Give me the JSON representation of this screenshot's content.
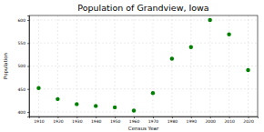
{
  "chart_data": {
    "type": "scatter",
    "title": "Population of Grandview, Iowa",
    "x_label": "Census Year",
    "y_label": "Population",
    "x": [
      1910,
      1920,
      1930,
      1940,
      1950,
      1960,
      1970,
      1980,
      1990,
      2000,
      2010,
      2020
    ],
    "values": [
      452,
      428,
      417,
      413,
      410,
      403,
      441,
      516,
      541,
      600,
      569,
      491
    ],
    "color": "#008000",
    "marker": "circle",
    "xlim": [
      1905,
      2025
    ],
    "xticks": [
      1910,
      1920,
      1930,
      1940,
      1950,
      1960,
      1970,
      1980,
      1990,
      2000,
      2010,
      2020
    ],
    "ylim": [
      390,
      610
    ],
    "yticks": [
      400,
      450,
      500,
      550,
      600
    ],
    "grid": true
  }
}
